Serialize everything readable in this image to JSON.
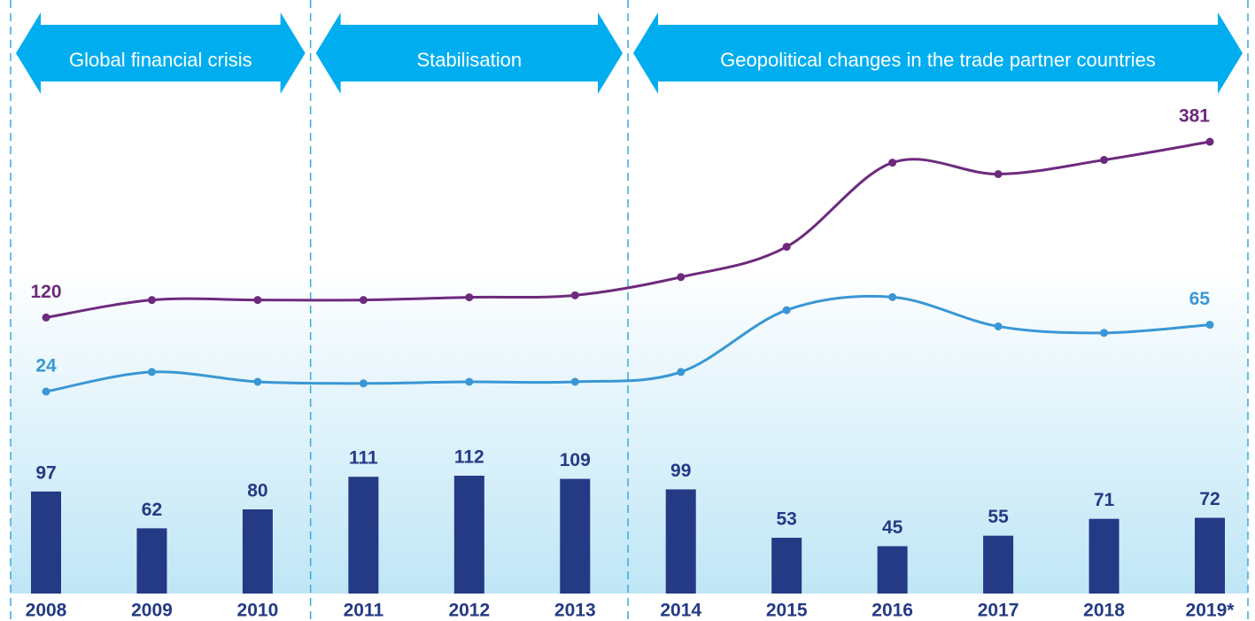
{
  "chart_data": {
    "type": "bar-line",
    "categories": [
      "2008",
      "2009",
      "2010",
      "2011",
      "2012",
      "2013",
      "2014",
      "2015",
      "2016",
      "2017",
      "2018",
      "2019*"
    ],
    "bars": {
      "color": "#243a84",
      "ylim": [
        0,
        480
      ],
      "values": [
        97,
        62,
        80,
        111,
        112,
        109,
        99,
        53,
        45,
        55,
        71,
        72
      ]
    },
    "series": [
      {
        "color": "#6d2a7d",
        "ylim": [
          -290,
          460
        ],
        "values": [
          120,
          146,
          146,
          146,
          150,
          153,
          180,
          225,
          350,
          333,
          354,
          381
        ]
      },
      {
        "color": "#3a97d4",
        "ylim": [
          -100,
          210
        ],
        "values": [
          24,
          36,
          30,
          29,
          30,
          30,
          36,
          74,
          82,
          64,
          60,
          65
        ]
      }
    ],
    "phases": [
      "Global financial crisis",
      "Stabilisation",
      "Geopolitical changes in the trade partner countries"
    ]
  }
}
